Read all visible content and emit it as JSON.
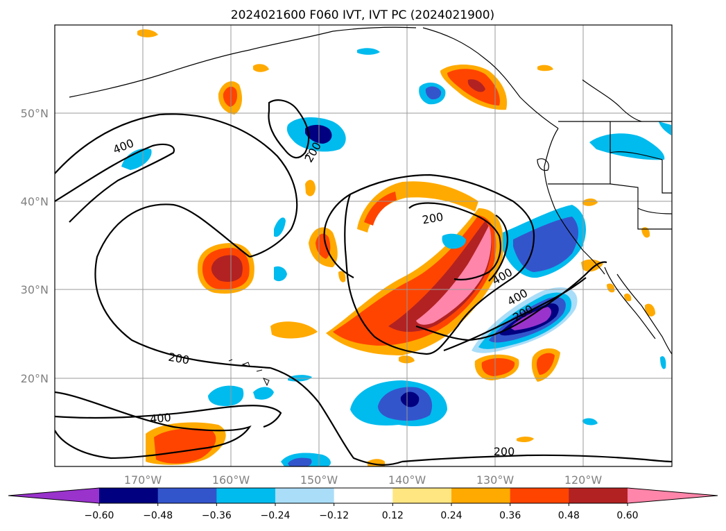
{
  "title": "2024021600 F060 IVT, IVT PC (2024021900)",
  "map": {
    "lon_labels": [
      "170°W",
      "160°W",
      "150°W",
      "140°W",
      "130°W",
      "120°W"
    ],
    "lat_labels": [
      "50°N",
      "40°N",
      "30°N",
      "20°N"
    ],
    "contour_labels": [
      "400",
      "200",
      "200",
      "200",
      "400",
      "400",
      "200",
      "400",
      "200"
    ]
  },
  "colorbar": {
    "colors": [
      "#9933cc",
      "#000080",
      "#3355cc",
      "#00bbee",
      "#aaddf8",
      "#ffffff",
      "#ffe680",
      "#ffaa00",
      "#ff4400",
      "#b22222",
      "#ff85aa"
    ],
    "tick_labels": [
      "−0.60",
      "−0.48",
      "−0.36",
      "−0.24",
      "−0.12",
      "0.12",
      "0.24",
      "0.36",
      "0.48",
      "0.60"
    ]
  }
}
